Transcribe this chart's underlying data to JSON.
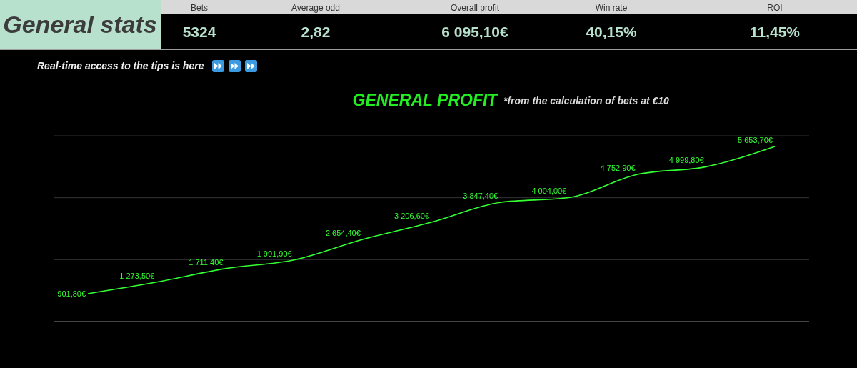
{
  "chart_data": [
    {
      "type": "other",
      "title": "General stats",
      "categories": [
        "Bets",
        "Average odd",
        "Overall profit",
        "Win rate",
        "ROI"
      ],
      "annotations": [
        "5324",
        "2,82",
        "6 095,10€",
        "40,15%",
        "11,45%"
      ]
    },
    {
      "type": "line",
      "title": "GENERAL PROFIT",
      "subtitle": "*from the calculation of bets at €10",
      "annotations": [
        "Real-time access to the tips is here"
      ],
      "categories": [
        null,
        null,
        null,
        null,
        null,
        null,
        null,
        null,
        null,
        null,
        null
      ],
      "series": [
        {
          "color": "#33ff33",
          "values": [
            901.8,
            1273.5,
            1711.4,
            1991.9,
            2654.4,
            3206.6,
            3847.4,
            4004.0,
            4752.9,
            4999.8,
            5653.7
          ],
          "value_labels": [
            "901,80€",
            "1 273,50€",
            "1 711,40€",
            "1 991,90€",
            "2 654,40€",
            "3 206,60€",
            "3 847,40€",
            "4 004,00€",
            "4 752,90€",
            "4 999,80€",
            "5 653,70€"
          ]
        }
      ],
      "ylim": [
        0,
        6000
      ],
      "yticks": [
        {
          "value": 0,
          "label": null
        },
        {
          "value": 2000,
          "label": null
        },
        {
          "value": 4000,
          "label": null
        },
        {
          "value": 6000,
          "label": null
        }
      ],
      "grid": "y",
      "marker": "none",
      "line_style": "solid"
    }
  ]
}
